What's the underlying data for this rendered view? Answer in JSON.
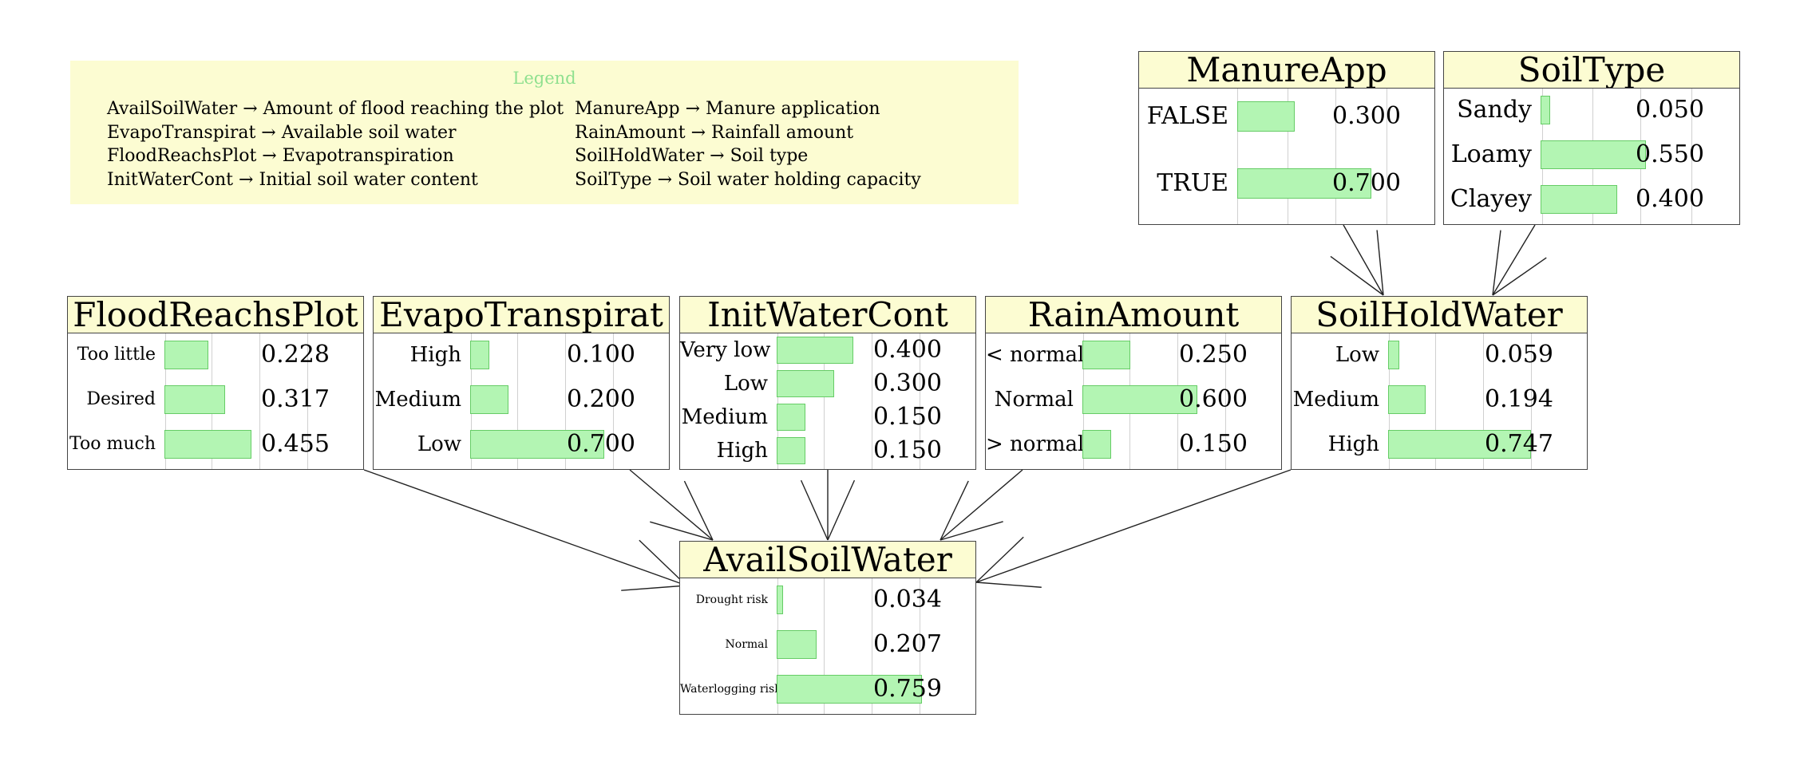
{
  "legend": {
    "title": "Legend",
    "items": [
      {
        "abbr": "AvailSoilWater",
        "full": "Amount of flood reaching the plot"
      },
      {
        "abbr": "EvapoTranspirat",
        "full": "Available soil water"
      },
      {
        "abbr": "FloodReachsPlot",
        "full": "Evapotranspiration"
      },
      {
        "abbr": "InitWaterCont",
        "full": "Initial soil water content"
      },
      {
        "abbr": "ManureApp",
        "full": "Manure application"
      },
      {
        "abbr": "RainAmount",
        "full": "Rainfall amount"
      },
      {
        "abbr": "SoilHoldWater",
        "full": "Soil type"
      },
      {
        "abbr": "SoilType",
        "full": "Soil water holding capacity"
      }
    ]
  },
  "colors": {
    "title_bg": "#fcfcd2",
    "bar_fill": "#b3f5b3",
    "bar_border": "#66cc66",
    "legend_title": "#8fe08f"
  },
  "nodes": [
    {
      "id": "ManureApp",
      "title": "ManureApp",
      "states": [
        {
          "label": "FALSE",
          "value": "0.300",
          "p": 0.3
        },
        {
          "label": "TRUE",
          "value": "0.700",
          "p": 0.7
        }
      ]
    },
    {
      "id": "SoilType",
      "title": "SoilType",
      "states": [
        {
          "label": "Sandy",
          "value": "0.050",
          "p": 0.05
        },
        {
          "label": "Loamy",
          "value": "0.550",
          "p": 0.55
        },
        {
          "label": "Clayey",
          "value": "0.400",
          "p": 0.4
        }
      ]
    },
    {
      "id": "FloodReachsPlot",
      "title": "FloodReachsPlot",
      "states": [
        {
          "label": "Too little",
          "value": "0.228",
          "p": 0.228
        },
        {
          "label": "Desired",
          "value": "0.317",
          "p": 0.317
        },
        {
          "label": "Too much",
          "value": "0.455",
          "p": 0.455
        }
      ]
    },
    {
      "id": "EvapoTranspirat",
      "title": "EvapoTranspirat",
      "states": [
        {
          "label": "High",
          "value": "0.100",
          "p": 0.1
        },
        {
          "label": "Medium",
          "value": "0.200",
          "p": 0.2
        },
        {
          "label": "Low",
          "value": "0.700",
          "p": 0.7
        }
      ]
    },
    {
      "id": "InitWaterCont",
      "title": "InitWaterCont",
      "states": [
        {
          "label": "Very low",
          "value": "0.400",
          "p": 0.4
        },
        {
          "label": "Low",
          "value": "0.300",
          "p": 0.3
        },
        {
          "label": "Medium",
          "value": "0.150",
          "p": 0.15
        },
        {
          "label": "High",
          "value": "0.150",
          "p": 0.15
        }
      ]
    },
    {
      "id": "RainAmount",
      "title": "RainAmount",
      "states": [
        {
          "label": "< normal",
          "value": "0.250",
          "p": 0.25
        },
        {
          "label": "Normal",
          "value": "0.600",
          "p": 0.6
        },
        {
          "label": "> normal",
          "value": "0.150",
          "p": 0.15
        }
      ]
    },
    {
      "id": "SoilHoldWater",
      "title": "SoilHoldWater",
      "states": [
        {
          "label": "Low",
          "value": "0.059",
          "p": 0.059
        },
        {
          "label": "Medium",
          "value": "0.194",
          "p": 0.194
        },
        {
          "label": "High",
          "value": "0.747",
          "p": 0.747
        }
      ]
    },
    {
      "id": "AvailSoilWater",
      "title": "AvailSoilWater",
      "states": [
        {
          "label": "Drought risk",
          "value": "0.034",
          "p": 0.034
        },
        {
          "label": "Normal",
          "value": "0.207",
          "p": 0.207
        },
        {
          "label": "Waterlogging risk",
          "value": "0.759",
          "p": 0.759
        }
      ]
    }
  ],
  "edges": [
    {
      "from": "ManureApp",
      "to": "SoilHoldWater"
    },
    {
      "from": "SoilType",
      "to": "SoilHoldWater"
    },
    {
      "from": "FloodReachsPlot",
      "to": "AvailSoilWater"
    },
    {
      "from": "EvapoTranspirat",
      "to": "AvailSoilWater"
    },
    {
      "from": "InitWaterCont",
      "to": "AvailSoilWater"
    },
    {
      "from": "RainAmount",
      "to": "AvailSoilWater"
    },
    {
      "from": "SoilHoldWater",
      "to": "AvailSoilWater"
    }
  ]
}
